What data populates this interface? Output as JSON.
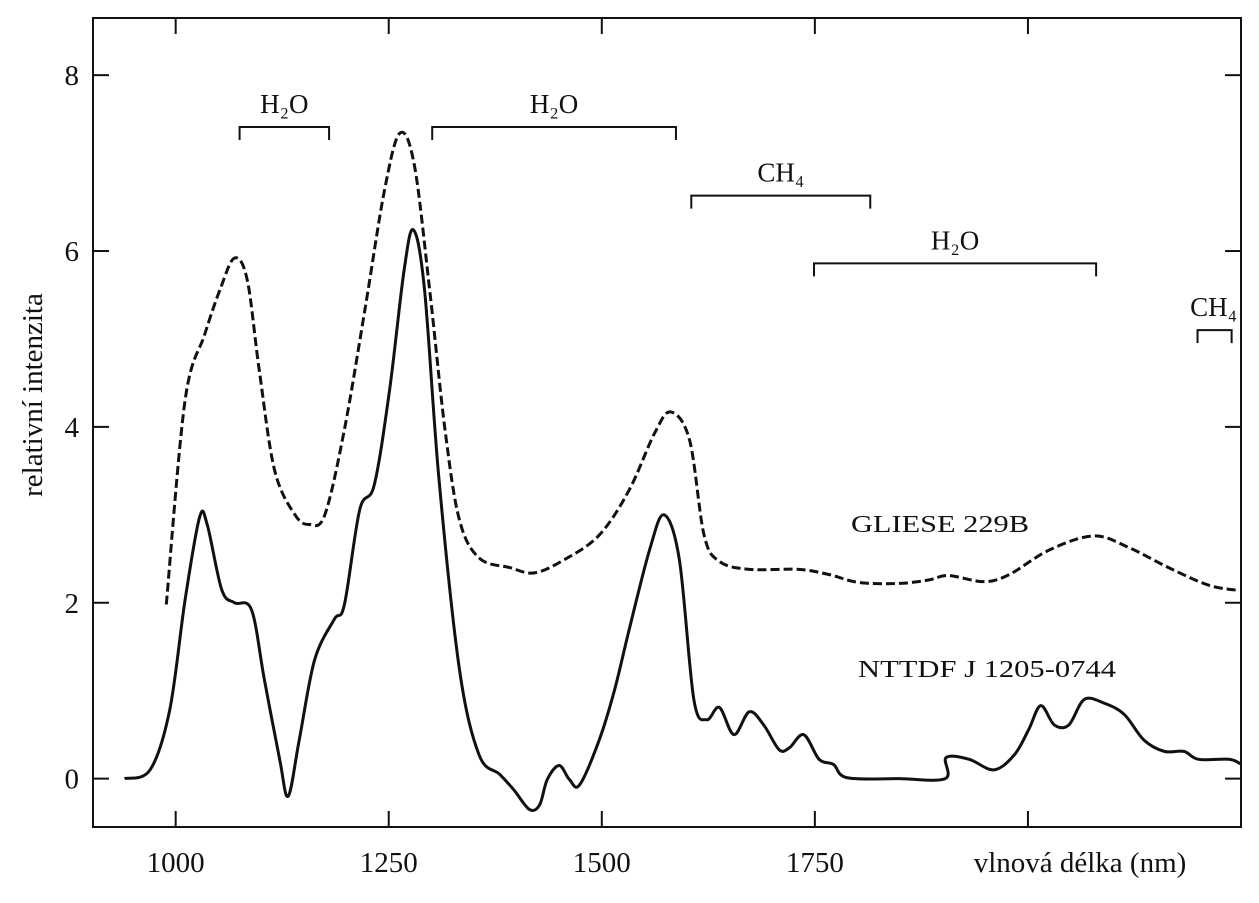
{
  "chart_data": {
    "type": "line",
    "xlabel": "vlnová délka (nm)",
    "ylabel": "relativní intenzita",
    "xlim": [
      903,
      2250
    ],
    "ylim": [
      -0.55,
      8.65
    ],
    "xticks": [
      1000,
      1250,
      1500,
      1750,
      {
        "value": 2000,
        "label": null
      }
    ],
    "yticks": [
      0,
      2,
      4,
      6,
      8
    ],
    "series": [
      {
        "name": "GLIESE  229B",
        "color": "#111111",
        "dash": true,
        "x": [
          989,
          1011,
          1034,
          1052,
          1069,
          1084,
          1098,
          1116,
          1140,
          1157,
          1175,
          1198,
          1222,
          1245,
          1263,
          1280,
          1298,
          1316,
          1333,
          1356,
          1392,
          1421,
          1456,
          1497,
          1532,
          1562,
          1581,
          1603,
          1620,
          1638,
          1673,
          1731,
          1767,
          1802,
          1849,
          1884,
          1907,
          1948,
          1978,
          2025,
          2077,
          2118,
          2165,
          2212,
          2247
        ],
        "values": [
          1.98,
          4.3,
          5.05,
          5.56,
          5.92,
          5.67,
          4.65,
          3.51,
          3.0,
          2.89,
          3.0,
          3.97,
          5.33,
          6.69,
          7.34,
          6.98,
          5.56,
          3.97,
          2.94,
          2.51,
          2.4,
          2.34,
          2.49,
          2.77,
          3.28,
          3.93,
          4.17,
          3.85,
          2.77,
          2.47,
          2.38,
          2.38,
          2.32,
          2.23,
          2.22,
          2.26,
          2.31,
          2.24,
          2.32,
          2.6,
          2.76,
          2.63,
          2.4,
          2.2,
          2.14
        ]
      },
      {
        "name": "NTTDF  J 1205-0744",
        "color": "#111111",
        "dash": false,
        "x": [
          940,
          970,
          993,
          1011,
          1028,
          1037,
          1054,
          1069,
          1089,
          1104,
          1122,
          1132,
          1145,
          1163,
          1186,
          1198,
          1216,
          1233,
          1251,
          1268,
          1279,
          1292,
          1309,
          1333,
          1356,
          1380,
          1397,
          1415,
          1427,
          1436,
          1450,
          1462,
          1474,
          1497,
          1515,
          1532,
          1556,
          1573,
          1591,
          1608,
          1623,
          1638,
          1655,
          1673,
          1690,
          1708,
          1720,
          1737,
          1755,
          1772,
          1788,
          1849,
          1903,
          1904,
          1931,
          1960,
          1984,
          2001,
          2015,
          2031,
          2048,
          2066,
          2089,
          2113,
          2136,
          2160,
          2183,
          2200,
          2236,
          2249
        ],
        "values": [
          0,
          0.1,
          0.78,
          2.03,
          2.97,
          2.89,
          2.15,
          2.0,
          1.92,
          1.13,
          0.22,
          -0.2,
          0.44,
          1.35,
          1.81,
          1.98,
          3.06,
          3.34,
          4.42,
          5.78,
          6.24,
          5.56,
          3.4,
          1.24,
          0.27,
          0.05,
          -0.13,
          -0.35,
          -0.3,
          -0.01,
          0.15,
          -0.01,
          -0.07,
          0.44,
          1.01,
          1.69,
          2.6,
          3.0,
          2.49,
          0.9,
          0.67,
          0.81,
          0.5,
          0.76,
          0.61,
          0.33,
          0.35,
          0.5,
          0.22,
          0.16,
          0.01,
          0,
          0,
          0.24,
          0.22,
          0.1,
          0.27,
          0.56,
          0.83,
          0.61,
          0.61,
          0.9,
          0.86,
          0.73,
          0.44,
          0.31,
          0.31,
          0.22,
          0.22,
          0.17
        ]
      }
    ],
    "annotations": [
      {
        "text": "H₂O",
        "x": [
          1075,
          1180
        ],
        "y": 7.41
      },
      {
        "text": "H₂O",
        "x": [
          1301,
          1587
        ],
        "y": 7.41
      },
      {
        "text": "CH₄",
        "x": [
          1605,
          1815
        ],
        "y": 6.63
      },
      {
        "text": "H₂O",
        "x": [
          1749,
          2080
        ],
        "y": 5.86
      },
      {
        "text": "CH₄",
        "x": [
          2199,
          2239
        ],
        "y": 5.1
      }
    ]
  }
}
